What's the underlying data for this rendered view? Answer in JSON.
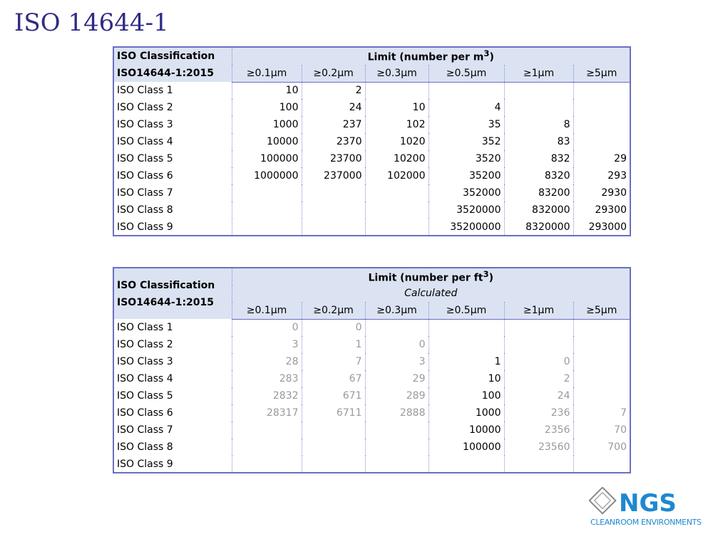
{
  "title": "ISO 14644-1",
  "tables": [
    {
      "class_header": [
        "ISO Classification",
        "ISO14644-1:2015"
      ],
      "limit_label": "Limit (number per m",
      "limit_unit_sup": "3",
      "limit_close": ")",
      "subtitle": "",
      "columns": [
        "≥0.1µm",
        "≥0.2µm",
        "≥0.3µm",
        "≥0.5µm",
        "≥1µm",
        "≥5µm"
      ],
      "rows": [
        {
          "name": "ISO Class 1",
          "values": [
            "10",
            "2",
            "",
            "",
            "",
            ""
          ]
        },
        {
          "name": "ISO Class 2",
          "values": [
            "100",
            "24",
            "10",
            "4",
            "",
            ""
          ]
        },
        {
          "name": "ISO Class 3",
          "values": [
            "1000",
            "237",
            "102",
            "35",
            "8",
            ""
          ]
        },
        {
          "name": "ISO Class 4",
          "values": [
            "10000",
            "2370",
            "1020",
            "352",
            "83",
            ""
          ]
        },
        {
          "name": "ISO Class 5",
          "values": [
            "100000",
            "23700",
            "10200",
            "3520",
            "832",
            "29"
          ]
        },
        {
          "name": "ISO Class 6",
          "values": [
            "1000000",
            "237000",
            "102000",
            "35200",
            "8320",
            "293"
          ]
        },
        {
          "name": "ISO Class 7",
          "values": [
            "",
            "",
            "",
            "352000",
            "83200",
            "2930"
          ]
        },
        {
          "name": "ISO Class 8",
          "values": [
            "",
            "",
            "",
            "3520000",
            "832000",
            "29300"
          ]
        },
        {
          "name": "ISO Class 9",
          "values": [
            "",
            "",
            "",
            "35200000",
            "8320000",
            "293000"
          ]
        }
      ]
    },
    {
      "class_header": [
        "ISO Classification",
        "ISO14644-1:2015"
      ],
      "limit_label": "Limit (number per ft",
      "limit_unit_sup": "3",
      "limit_close": ")",
      "subtitle": "Calculated",
      "columns": [
        "≥0.1µm",
        "≥0.2µm",
        "≥0.3µm",
        "≥0.5µm",
        "≥1µm",
        "≥5µm"
      ],
      "muted": true,
      "rows": [
        {
          "name": "ISO Class 1",
          "values": [
            "0",
            "0",
            "",
            "",
            "",
            ""
          ]
        },
        {
          "name": "ISO Class 2",
          "values": [
            "3",
            "1",
            "0",
            "",
            "",
            ""
          ]
        },
        {
          "name": "ISO Class 3",
          "values": [
            "28",
            "7",
            "3",
            "1",
            "0",
            ""
          ]
        },
        {
          "name": "ISO Class 4",
          "values": [
            "283",
            "67",
            "29",
            "10",
            "2",
            ""
          ]
        },
        {
          "name": "ISO Class 5",
          "values": [
            "2832",
            "671",
            "289",
            "100",
            "24",
            ""
          ]
        },
        {
          "name": "ISO Class 6",
          "values": [
            "28317",
            "6711",
            "2888",
            "1000",
            "236",
            "7"
          ]
        },
        {
          "name": "ISO Class 7",
          "values": [
            "",
            "",
            "",
            "10000",
            "2356",
            "70"
          ]
        },
        {
          "name": "ISO Class 8",
          "values": [
            "",
            "",
            "",
            "100000",
            "23560",
            "700"
          ]
        },
        {
          "name": "ISO Class 9",
          "values": [
            "",
            "",
            "",
            "",
            "",
            ""
          ]
        }
      ]
    }
  ],
  "logo": {
    "brand": "NGS",
    "tagline": "CLEANROOM ENVIRONMENTS",
    "color": "#1e88d0"
  }
}
